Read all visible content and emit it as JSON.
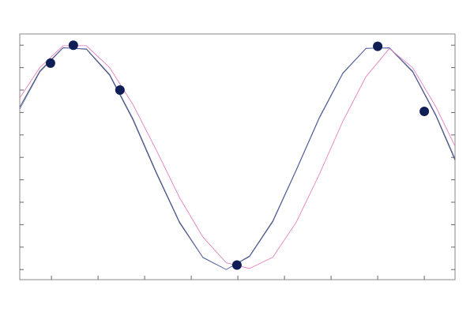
{
  "chart_data": {
    "type": "line",
    "xlim": [
      0.32,
      9.66
    ],
    "ylim": [
      -1.09,
      1.1
    ],
    "xticks": [
      1,
      2,
      3,
      4,
      5,
      6,
      7,
      8,
      9
    ],
    "yticks": [
      -1,
      -0.8,
      -0.6,
      -0.4,
      -0.2,
      0,
      0.2,
      0.4,
      0.6,
      0.8,
      1
    ],
    "x": [
      0.32,
      0.75,
      1.25,
      1.75,
      2.25,
      2.75,
      3.25,
      3.75,
      4.25,
      4.75,
      5.25,
      5.75,
      6.25,
      6.75,
      7.25,
      7.75,
      8.25,
      8.75,
      9.25,
      9.66
    ],
    "series": [
      {
        "color": "#3a3a3a",
        "values": [
          0.448,
          0.769,
          0.978,
          0.964,
          0.731,
          0.333,
          -0.142,
          -0.584,
          -0.893,
          -1.0,
          -0.879,
          -0.566,
          -0.113,
          0.358,
          0.751,
          0.972,
          0.975,
          0.762,
          0.37,
          -0.025
        ]
      },
      {
        "color": "#5b6fc8",
        "values": [
          0.43,
          0.76,
          0.975,
          0.968,
          0.74,
          0.345,
          -0.13,
          -0.575,
          -0.89,
          -1.0,
          -0.885,
          -0.575,
          -0.12,
          0.35,
          0.745,
          0.97,
          0.978,
          0.77,
          0.38,
          -0.01
        ]
      },
      {
        "color": "#e070b8",
        "values": [
          0.53,
          0.8,
          0.995,
          0.995,
          0.8,
          0.47,
          0.065,
          -0.36,
          -0.71,
          -0.94,
          -0.99,
          -0.89,
          -0.58,
          -0.15,
          0.32,
          0.72,
          0.97,
          0.8,
          0.45,
          0.1
        ]
      }
    ],
    "points": {
      "color": "#0f1f55",
      "x": [
        0.98,
        1.47,
        2.47,
        4.98,
        8.0,
        9.0
      ],
      "y": [
        0.84,
        1.0,
        0.6,
        -0.96,
        0.99,
        0.41
      ]
    }
  }
}
